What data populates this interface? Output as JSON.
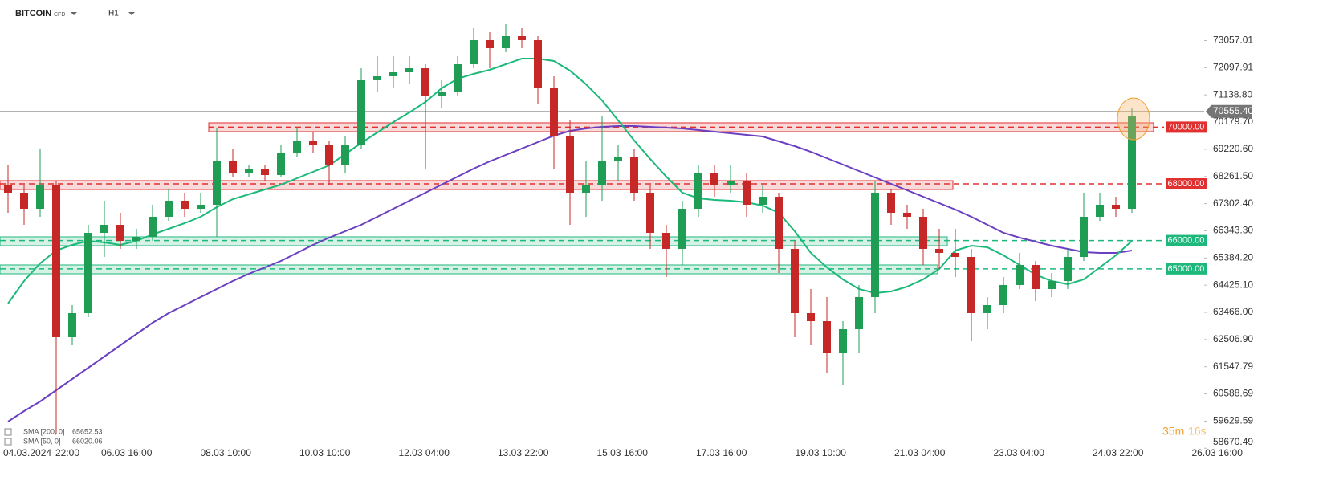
{
  "chart_data": {
    "type": "candlestick",
    "title": "BITCOIN",
    "subtitle": "CFD",
    "interval": "H1",
    "countdown_minutes": "35m",
    "countdown_seconds": "16s",
    "up_color": "#1f9d55",
    "down_color": "#c62828",
    "ylim": [
      58621,
      74488
    ],
    "yticks": [
      {
        "value": 73057.01,
        "label": "73057.01"
      },
      {
        "value": 72097.91,
        "label": "72097.91"
      },
      {
        "value": 71138.8,
        "label": "71138.80"
      },
      {
        "value": 70179.7,
        "label": "70179.70"
      },
      {
        "value": 69220.6,
        "label": "69220.60"
      },
      {
        "value": 68261.5,
        "label": "68261.50"
      },
      {
        "value": 67302.4,
        "label": "67302.40"
      },
      {
        "value": 66343.3,
        "label": "66343.30"
      },
      {
        "value": 65384.2,
        "label": "65384.20"
      },
      {
        "value": 64425.1,
        "label": "64425.10"
      },
      {
        "value": 63466,
        "label": "63466.00"
      },
      {
        "value": 62506.9,
        "label": "62506.90"
      },
      {
        "value": 61547.79,
        "label": "61547.79"
      },
      {
        "value": 60588.69,
        "label": "60588.69"
      },
      {
        "value": 59629.59,
        "label": "59629.59"
      },
      {
        "value": 58670.49,
        "label": "58670.49"
      }
    ],
    "x_labels": [
      "04.03.2024",
      "22:00",
      "06.03 16:00",
      "08.03 10:00",
      "10.03 10:00",
      "12.03 04:00",
      "13.03 22:00",
      "15.03 16:00",
      "17.03 16:00",
      "19.03 10:00",
      "21.03 04:00",
      "23.03 04:00",
      "24.03 22:00",
      "26.03 16:00"
    ],
    "open": [
      67971,
      67688,
      67121,
      67971,
      62588,
      63438,
      66271,
      66555,
      65988,
      66130,
      66838,
      67405,
      67121,
      67263,
      68821,
      68396,
      68538,
      68311,
      69105,
      69530,
      69388,
      68680,
      69388,
      71655,
      71796,
      71938,
      72080,
      71088,
      71230,
      72221,
      73071,
      72788,
      73213,
      73071,
      71371,
      69671,
      67688,
      67971,
      68821,
      68963,
      67688,
      66271,
      65705,
      67121,
      68396,
      67971,
      68113,
      67263,
      67546,
      65705,
      63438,
      63154,
      62021,
      62871,
      64005,
      67688,
      66980,
      66838,
      65705,
      65563,
      65421,
      63438,
      63721,
      64430,
      65138,
      64288,
      64571,
      65421,
      66838,
      67263,
      67121
    ],
    "high": [
      68680,
      67971,
      69246,
      68113,
      63721,
      66555,
      67405,
      66980,
      66413,
      67263,
      67830,
      67688,
      67688,
      69955,
      69246,
      68680,
      68680,
      69388,
      69955,
      69813,
      69530,
      69671,
      72080,
      72505,
      72505,
      72505,
      72221,
      71655,
      72505,
      73496,
      73355,
      73638,
      73496,
      73213,
      71796,
      70238,
      68821,
      70380,
      69388,
      69246,
      67971,
      66555,
      67405,
      68680,
      68680,
      68680,
      68396,
      67971,
      67688,
      65988,
      64288,
      64005,
      63154,
      64430,
      68113,
      67830,
      67263,
      67121,
      66413,
      66413,
      65705,
      64005,
      64713,
      65563,
      65279,
      64854,
      65705,
      67688,
      67688,
      67546,
      70663
    ],
    "low": [
      66980,
      66555,
      66838,
      59187,
      62304,
      63296,
      65421,
      65705,
      65705,
      65988,
      66696,
      66838,
      66980,
      66130,
      68255,
      68255,
      68113,
      68255,
      68963,
      69105,
      67971,
      68396,
      69246,
      71230,
      71371,
      71513,
      68538,
      70663,
      71088,
      72080,
      72080,
      72646,
      72788,
      70805,
      68538,
      66555,
      66838,
      67405,
      68113,
      67405,
      65705,
      64713,
      65138,
      66838,
      67546,
      67688,
      66838,
      66980,
      64854,
      62588,
      62304,
      61313,
      60888,
      62021,
      63438,
      66555,
      66413,
      65138,
      64996,
      64713,
      62446,
      62871,
      63438,
      64288,
      63863,
      64005,
      64288,
      65279,
      66696,
      66838,
      66980
    ],
    "close": [
      67688,
      67121,
      67971,
      62588,
      63438,
      66271,
      66555,
      65988,
      66130,
      66838,
      67405,
      67121,
      67263,
      68821,
      68396,
      68538,
      68311,
      69105,
      69530,
      69388,
      68680,
      69388,
      71655,
      71796,
      71938,
      72080,
      71088,
      71230,
      72221,
      73071,
      72788,
      73213,
      73071,
      71371,
      69671,
      67688,
      67971,
      68821,
      68963,
      67688,
      66271,
      65705,
      67121,
      68396,
      67971,
      68113,
      67263,
      67546,
      65705,
      63438,
      63154,
      62021,
      62871,
      64005,
      67688,
      66980,
      66838,
      65705,
      65563,
      65421,
      63438,
      63721,
      64430,
      65138,
      64288,
      64571,
      65421,
      66838,
      67263,
      67121,
      70380
    ],
    "series": [
      {
        "name": "SMA [200, 0]",
        "legend_value": 65652.53,
        "color": "#6a3fc1",
        "values": [
          59613,
          59981,
          60321,
          60718,
          61114,
          61511,
          61908,
          62304,
          62701,
          63098,
          63438,
          63721,
          64005,
          64288,
          64571,
          64826,
          65053,
          65279,
          65563,
          65846,
          66101,
          66328,
          66555,
          66838,
          67121,
          67405,
          67688,
          67971,
          68255,
          68538,
          68793,
          69020,
          69246,
          69473,
          69700,
          69870,
          69955,
          70011,
          70040,
          70040,
          70011,
          69983,
          69955,
          69898,
          69841,
          69785,
          69728,
          69671,
          69501,
          69331,
          69133,
          68906,
          68680,
          68453,
          68226,
          68000,
          67773,
          67546,
          67319,
          67093,
          66838,
          66555,
          66271,
          66101,
          65959,
          65818,
          65705,
          65591,
          65563,
          65563,
          65648
        ]
      },
      {
        "name": "SMA [50, 0]",
        "legend_value": 66020.06,
        "color": "#1cb97a",
        "values": [
          63778,
          64571,
          65194,
          65648,
          65846,
          65988,
          65931,
          65846,
          65988,
          66214,
          66413,
          66611,
          66838,
          67178,
          67461,
          67631,
          67801,
          67971,
          68198,
          68425,
          68651,
          69048,
          69445,
          69813,
          70181,
          70521,
          70890,
          71371,
          71711,
          71881,
          72023,
          72221,
          72420,
          72420,
          72335,
          71995,
          71513,
          70946,
          70238,
          69530,
          68878,
          68255,
          67688,
          67490,
          67433,
          67405,
          67348,
          67234,
          66980,
          66328,
          65563,
          65053,
          64628,
          64288,
          64146,
          64203,
          64373,
          64628,
          64996,
          65648,
          65818,
          65761,
          65478,
          65138,
          64798,
          64571,
          64458,
          64628,
          65053,
          65478,
          65988
        ]
      }
    ],
    "levels": [
      {
        "value": 70000,
        "label": "70000.00",
        "color": "#e03030",
        "zone": [
          69841,
          70153
        ]
      },
      {
        "value": 68000,
        "label": "68000.00",
        "color": "#e03030",
        "zone": [
          67801,
          68113
        ]
      },
      {
        "value": 66000,
        "label": "66000.00",
        "color": "#1eb87c",
        "zone": [
          65818,
          66130
        ]
      },
      {
        "value": 65000,
        "label": "65000.00",
        "color": "#1eb87c",
        "zone": [
          64826,
          65138
        ]
      }
    ],
    "last_price": {
      "value": 70555.4,
      "label": "70555.40"
    }
  }
}
